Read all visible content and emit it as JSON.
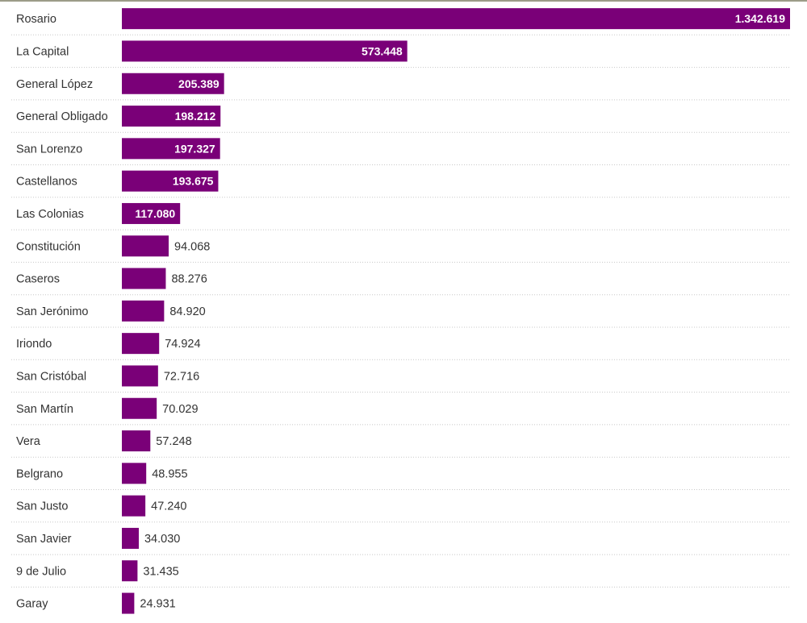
{
  "chart_data": {
    "type": "bar",
    "orientation": "horizontal",
    "title": "",
    "xlabel": "",
    "ylabel": "",
    "bar_color": "#7a0078",
    "grid": false,
    "row_separators": "dotted",
    "categories": [
      "Rosario",
      "La Capital",
      "General López",
      "General Obligado",
      "San Lorenzo",
      "Castellanos",
      "Las Colonias",
      "Constitución",
      "Caseros",
      "San Jerónimo",
      "Iriondo",
      "San Cristóbal",
      "San Martín",
      "Vera",
      "Belgrano",
      "San Justo",
      "San Javier",
      "9 de Julio",
      "Garay"
    ],
    "values": [
      1342619,
      573448,
      205389,
      198212,
      197327,
      193675,
      117080,
      94068,
      88276,
      84920,
      74924,
      72716,
      70029,
      57248,
      48955,
      47240,
      34030,
      31435,
      24931
    ],
    "value_labels": [
      "1.342.619",
      "573.448",
      "205.389",
      "198.212",
      "197.327",
      "193.675",
      "117.080",
      "94.068",
      "88.276",
      "84.920",
      "74.924",
      "72.716",
      "70.029",
      "57.248",
      "48.955",
      "47.240",
      "34.030",
      "31.435",
      "24.931"
    ],
    "xlim": [
      0,
      1342619
    ]
  }
}
